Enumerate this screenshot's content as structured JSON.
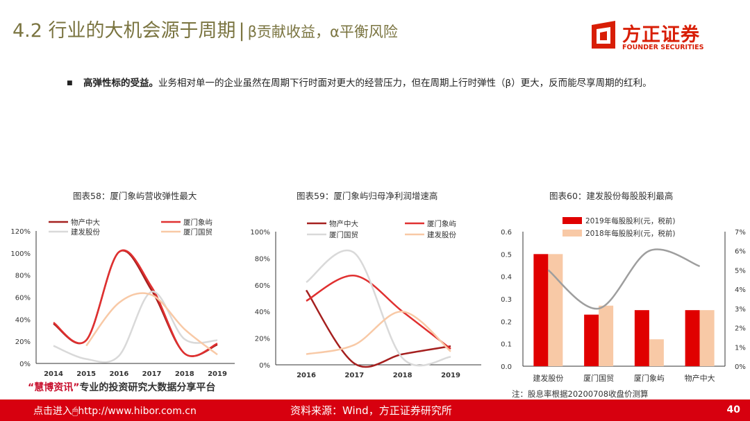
{
  "header": {
    "title": "4.2 行业的大机会源于周期",
    "separator": "|",
    "subtitle": "β贡献收益，α平衡风险"
  },
  "logo": {
    "cn": "方正证券",
    "en": "FOUNDER SECURITIES",
    "color": "#d81e06"
  },
  "bullet": {
    "bold": "高弹性标的受益。",
    "text": "业务相对单一的企业虽然在周期下行时面对更大的经营压力，但在周期上行时弹性（β）更大，反而能尽享周期的红利。"
  },
  "chart_data": [
    {
      "type": "line",
      "title": "图表58：厦门象屿营收弹性最大",
      "x": [
        2014,
        2015,
        2016,
        2017,
        2018,
        2019
      ],
      "ylim": [
        0,
        120
      ],
      "yticks": [
        "0%",
        "20%",
        "40%",
        "60%",
        "80%",
        "100%",
        "120%"
      ],
      "series": [
        {
          "name": "物产中大",
          "color": "#a5201f",
          "values": [
            36,
            21,
            101,
            66,
            9,
            17
          ]
        },
        {
          "name": "厦门象屿",
          "color": "#e03030",
          "values": [
            37,
            21,
            101,
            69,
            9,
            18
          ]
        },
        {
          "name": "建发股份",
          "color": "#d9d9d9",
          "values": [
            16,
            4,
            7,
            65,
            22,
            21
          ]
        },
        {
          "name": "厦门国贸",
          "color": "#f8c9a6",
          "values": [
            null,
            16,
            55,
            62,
            31,
            8
          ]
        }
      ]
    },
    {
      "type": "line",
      "title": "图表59：厦门象屿归母净利润增速高",
      "x": [
        2016,
        2017,
        2018,
        2019
      ],
      "ylim": [
        0,
        100
      ],
      "yticks": [
        "0%",
        "20%",
        "40%",
        "60%",
        "80%",
        "100%"
      ],
      "series": [
        {
          "name": "物产中大",
          "color": "#a5201f",
          "values": [
            56,
            1,
            8,
            14
          ]
        },
        {
          "name": "厦门象屿",
          "color": "#e03030",
          "values": [
            48,
            67,
            40,
            12
          ]
        },
        {
          "name": "厦门国贸",
          "color": "#d9d9d9",
          "values": [
            62,
            84,
            5,
            6
          ]
        },
        {
          "name": "建发股份",
          "color": "#f8c9a6",
          "values": [
            8,
            15,
            40,
            10
          ]
        }
      ]
    },
    {
      "type": "bar",
      "title": "图表60：建发股份每股股利最高",
      "categories": [
        "建发股份",
        "厦门国贸",
        "厦门象屿",
        "物产中大"
      ],
      "ylim": [
        0,
        0.6
      ],
      "yticks": [
        "0.0",
        "0.1",
        "0.2",
        "0.3",
        "0.4",
        "0.5",
        "0.6"
      ],
      "y2lim": [
        0,
        7
      ],
      "y2ticks": [
        "0%",
        "1%",
        "2%",
        "3%",
        "4%",
        "5%",
        "6%",
        "7%"
      ],
      "series": [
        {
          "name": "2019年每股股利(元，税前)",
          "color": "#e00000",
          "values": [
            0.5,
            0.23,
            0.25,
            0.25
          ]
        },
        {
          "name": "2018年每股股利(元，税前)",
          "color": "#f8c9a6",
          "values": [
            0.5,
            0.27,
            0.12,
            0.25
          ]
        }
      ],
      "line": {
        "color": "#9e9e9e",
        "values": [
          5.0,
          3.0,
          6.0,
          5.2
        ]
      }
    }
  ],
  "note": "注：股息率根据20200708收盘价测算",
  "ad": {
    "quote_open": "“",
    "highlight": "慧博资讯",
    "quote_close": "”",
    "text": "专业的投资研究大数据分享平台"
  },
  "footer": {
    "link": "点击进入🖱http://www.hibor.com.cn",
    "source": "资料来源：Wind，方正证券研究所",
    "page": "40"
  }
}
